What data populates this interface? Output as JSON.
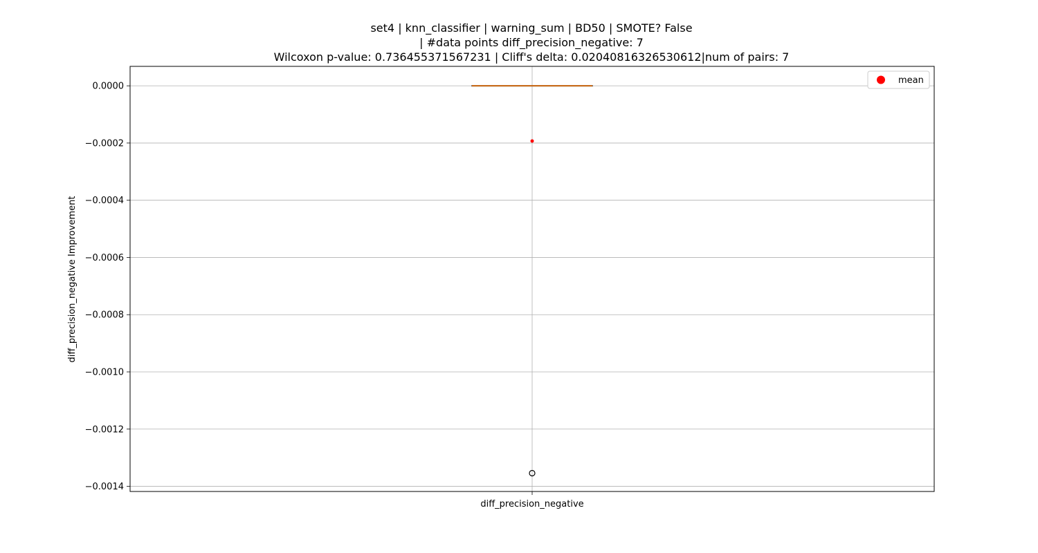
{
  "chart_data": {
    "type": "box",
    "title_lines": [
      "set4 | knn_classifier | warning_sum | BD50 | SMOTE? False",
      "| #data points diff_precision_negative: 7",
      "Wilcoxon p-value: 0.736455371567231 | Cliff's delta: 0.02040816326530612|num of pairs: 7"
    ],
    "xlabel": "",
    "ylabel": "diff_precision_negative Improvement",
    "categories": [
      "diff_precision_negative"
    ],
    "yticks": [
      0.0,
      -0.0002,
      -0.0004,
      -0.0006,
      -0.0008,
      -0.001,
      -0.0012,
      -0.0014
    ],
    "ytick_labels": [
      "0.0000",
      "−0.0002",
      "−0.0004",
      "−0.0006",
      "−0.0008",
      "−0.0010",
      "−0.0012",
      "−0.0014"
    ],
    "ylim": [
      -0.001418,
      6.8e-05
    ],
    "grid": true,
    "box": {
      "q1": 0.0,
      "median": 0.0,
      "q3": 0.0,
      "whisker_low": 0.0,
      "whisker_high": 0.0,
      "outliers": [
        -0.001354
      ],
      "mean": -0.000193
    },
    "legend": {
      "placement": "upper-right",
      "entries": [
        {
          "label": "mean",
          "color": "#ff0000"
        }
      ]
    },
    "colors": {
      "median": "#ff7f0e",
      "mean": "#ff0000",
      "grid": "#b0b0b0",
      "box": "#000000"
    }
  }
}
